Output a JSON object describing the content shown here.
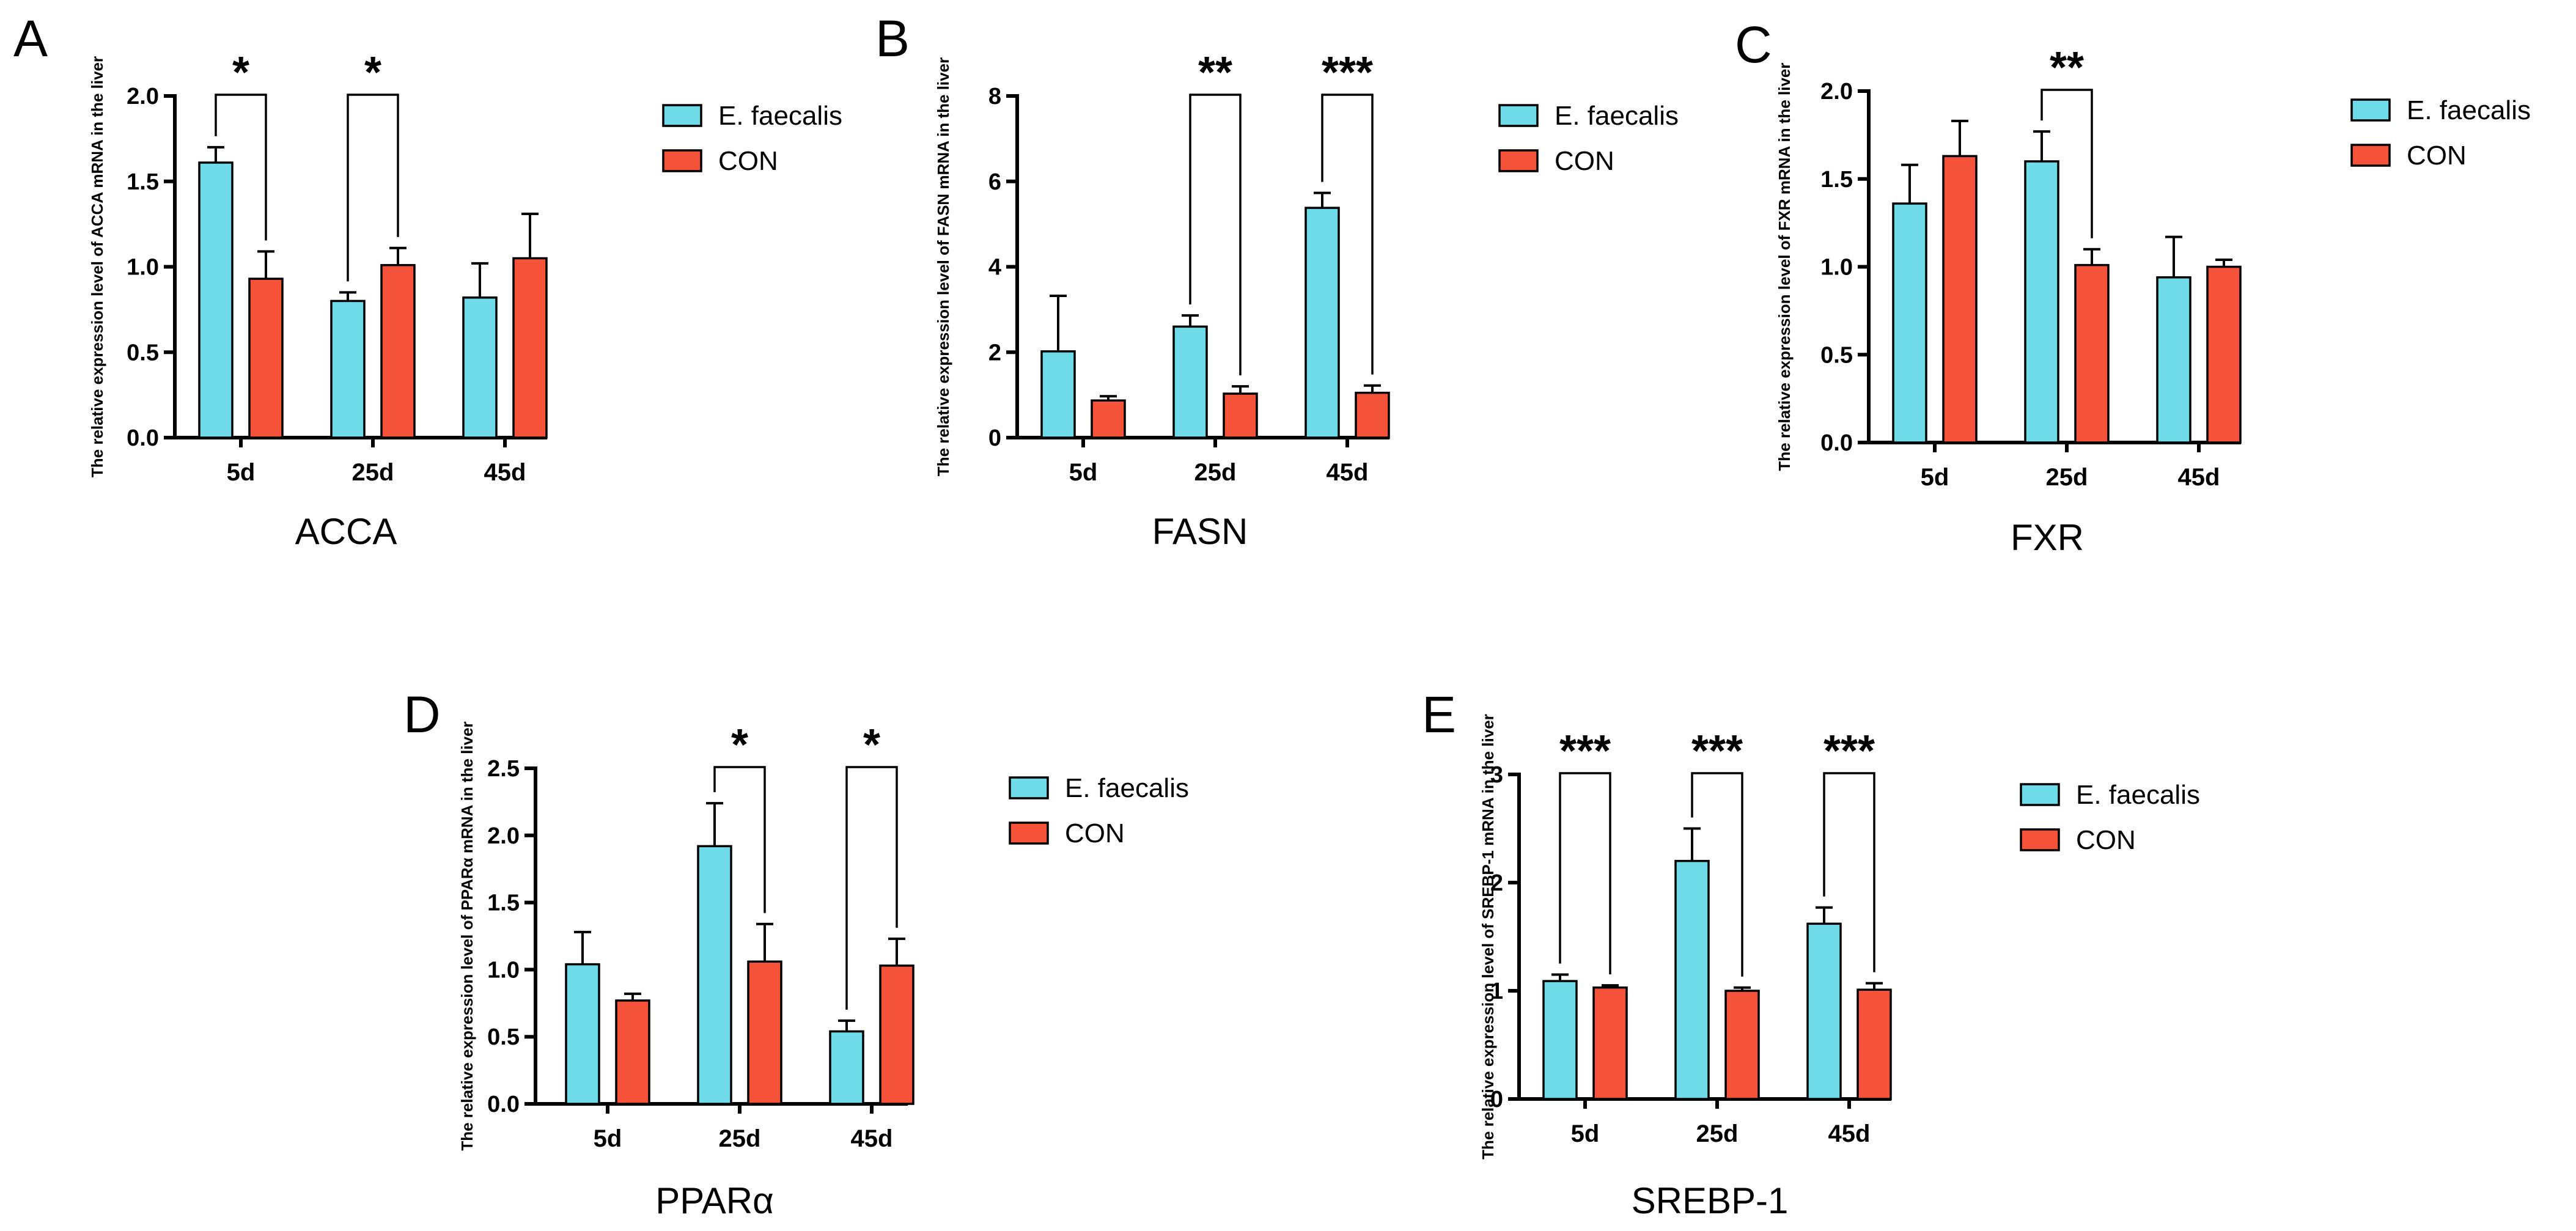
{
  "figure": {
    "series_names": [
      "E. faecalis",
      "CON"
    ],
    "colors": {
      "E. faecalis": "#6fdbe8",
      "CON": "#f4533a"
    }
  },
  "chart_data": [
    {
      "panel": "A",
      "type": "bar",
      "title": "ACCA",
      "ylabel": "The relative expression level of ACCA mRNA in the liver",
      "categories": [
        "5d",
        "25d",
        "45d"
      ],
      "ylim": [
        0,
        2.0
      ],
      "yticks": [
        0.0,
        0.5,
        1.0,
        1.5,
        2.0
      ],
      "ytick_labels": [
        "0.0",
        "0.5",
        "1.0",
        "1.5",
        "2.0"
      ],
      "series": [
        {
          "name": "E. faecalis",
          "values": [
            1.61,
            0.8,
            0.82
          ],
          "errors": [
            0.09,
            0.05,
            0.2
          ]
        },
        {
          "name": "CON",
          "values": [
            0.93,
            1.01,
            1.05
          ],
          "errors": [
            0.16,
            0.1,
            0.26
          ]
        }
      ],
      "significance": [
        {
          "category": "5d",
          "label": "*"
        },
        {
          "category": "25d",
          "label": "*"
        }
      ]
    },
    {
      "panel": "B",
      "type": "bar",
      "title": "FASN",
      "ylabel": "The relative expression level of FASN mRNA in the liver",
      "categories": [
        "5d",
        "25d",
        "45d"
      ],
      "ylim": [
        0,
        8
      ],
      "yticks": [
        0,
        2,
        4,
        6,
        8
      ],
      "ytick_labels": [
        "0",
        "2",
        "4",
        "6",
        "8"
      ],
      "series": [
        {
          "name": "E. faecalis",
          "values": [
            2.02,
            2.6,
            5.38
          ],
          "errors": [
            1.3,
            0.26,
            0.35
          ]
        },
        {
          "name": "CON",
          "values": [
            0.87,
            1.03,
            1.05
          ],
          "errors": [
            0.1,
            0.17,
            0.17
          ]
        }
      ],
      "significance": [
        {
          "category": "25d",
          "label": "**"
        },
        {
          "category": "45d",
          "label": "***"
        }
      ]
    },
    {
      "panel": "C",
      "type": "bar",
      "title": "FXR",
      "ylabel": "The relative expression level of FXR mRNA in the liver",
      "categories": [
        "5d",
        "25d",
        "45d"
      ],
      "ylim": [
        0,
        2.0
      ],
      "yticks": [
        0.0,
        0.5,
        1.0,
        1.5,
        2.0
      ],
      "ytick_labels": [
        "0.0",
        "0.5",
        "1.0",
        "1.5",
        "2.0"
      ],
      "series": [
        {
          "name": "E. faecalis",
          "values": [
            1.36,
            1.6,
            0.94
          ],
          "errors": [
            0.22,
            0.17,
            0.23
          ]
        },
        {
          "name": "CON",
          "values": [
            1.63,
            1.01,
            1.0
          ],
          "errors": [
            0.2,
            0.09,
            0.04
          ]
        }
      ],
      "significance": [
        {
          "category": "25d",
          "label": "**"
        }
      ]
    },
    {
      "panel": "D",
      "type": "bar",
      "title": "PPARα",
      "ylabel": "The relative expression level of PPARα mRNA in the liver",
      "categories": [
        "5d",
        "25d",
        "45d"
      ],
      "ylim": [
        0,
        2.5
      ],
      "yticks": [
        0.0,
        0.5,
        1.0,
        1.5,
        2.0,
        2.5
      ],
      "ytick_labels": [
        "0.0",
        "0.5",
        "1.0",
        "1.5",
        "2.0",
        "2.5"
      ],
      "series": [
        {
          "name": "E. faecalis",
          "values": [
            1.04,
            1.92,
            0.54
          ],
          "errors": [
            0.24,
            0.32,
            0.08
          ]
        },
        {
          "name": "CON",
          "values": [
            0.77,
            1.06,
            1.03
          ],
          "errors": [
            0.05,
            0.28,
            0.2
          ]
        }
      ],
      "significance": [
        {
          "category": "25d",
          "label": "*"
        },
        {
          "category": "45d",
          "label": "*"
        }
      ]
    },
    {
      "panel": "E",
      "type": "bar",
      "title": "SREBP-1",
      "ylabel": "The relative expression level of SREBP-1 mRNA in the liver",
      "categories": [
        "5d",
        "25d",
        "45d"
      ],
      "ylim": [
        0,
        3
      ],
      "yticks": [
        0,
        1,
        2,
        3
      ],
      "ytick_labels": [
        "0",
        "1",
        "2",
        "3"
      ],
      "series": [
        {
          "name": "E. faecalis",
          "values": [
            1.09,
            2.2,
            1.62
          ],
          "errors": [
            0.06,
            0.3,
            0.15
          ]
        },
        {
          "name": "CON",
          "values": [
            1.03,
            1.0,
            1.01
          ],
          "errors": [
            0.02,
            0.03,
            0.06
          ]
        }
      ],
      "significance": [
        {
          "category": "5d",
          "label": "***"
        },
        {
          "category": "25d",
          "label": "***"
        },
        {
          "category": "45d",
          "label": "***"
        }
      ]
    }
  ]
}
